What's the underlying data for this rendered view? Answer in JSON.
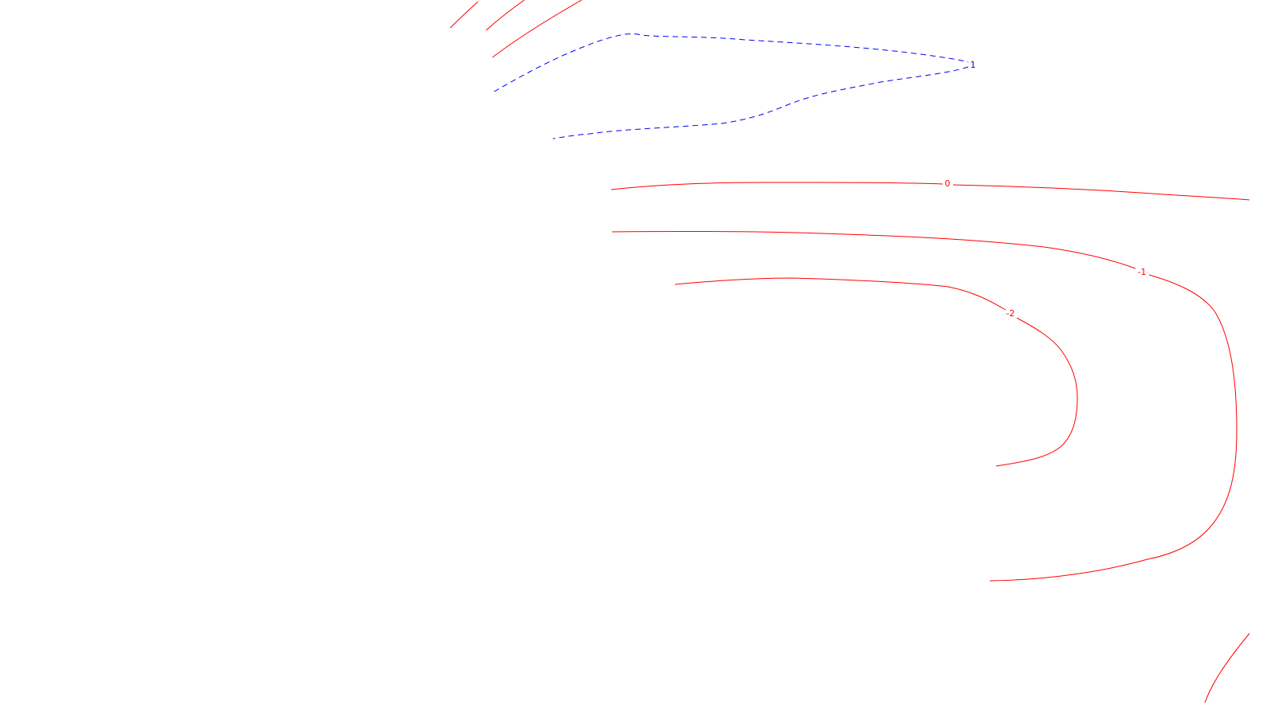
{
  "chart_data": {
    "type": "contour",
    "colors": {
      "positive": "#0000ff",
      "non_positive": "#ff0000"
    },
    "levels": [
      {
        "level": 1,
        "label": "1",
        "style": "dashed"
      },
      {
        "level": 0,
        "label": "0",
        "style": "solid"
      },
      {
        "level": -1,
        "label": "-1",
        "style": "solid"
      },
      {
        "level": -2,
        "label": "-2",
        "style": "solid"
      }
    ],
    "unlabeled_contours": 4
  }
}
